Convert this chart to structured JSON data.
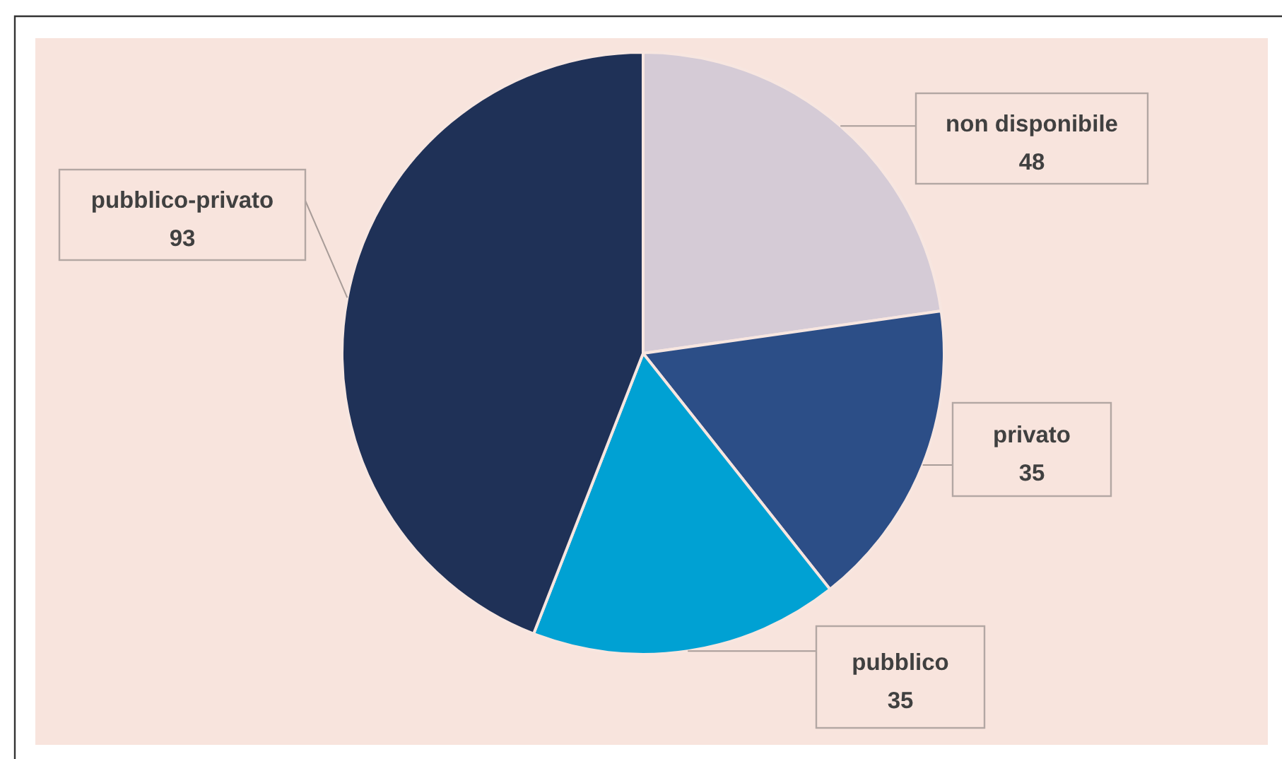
{
  "chart_data": {
    "type": "pie",
    "categories": [
      "non disponibile",
      "privato",
      "pubblico",
      "pubblico-privato"
    ],
    "values": [
      48,
      35,
      35,
      93
    ],
    "colors": [
      "#d5cbd6",
      "#2c4e87",
      "#00a1d3",
      "#1f3157"
    ],
    "data_labels": true
  }
}
